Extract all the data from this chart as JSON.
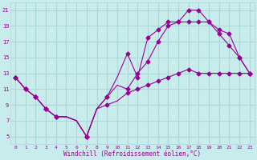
{
  "xlabel": "Windchill (Refroidissement éolien,°C)",
  "background_color": "#c8ecec",
  "grid_color": "#a8d8d8",
  "line_color": "#990099",
  "xlim": [
    -0.5,
    23.5
  ],
  "ylim": [
    4,
    22
  ],
  "xticks": [
    0,
    1,
    2,
    3,
    4,
    5,
    6,
    7,
    8,
    9,
    10,
    11,
    12,
    13,
    14,
    15,
    16,
    17,
    18,
    19,
    20,
    21,
    22,
    23
  ],
  "yticks": [
    5,
    7,
    9,
    11,
    13,
    15,
    17,
    19,
    21
  ],
  "series1_x": [
    0,
    1,
    2,
    3,
    4,
    5,
    6,
    7,
    8,
    9,
    10,
    11,
    12,
    13,
    14,
    15,
    16,
    17,
    18,
    19,
    20,
    21,
    22,
    23
  ],
  "series1_y": [
    12.5,
    11.0,
    10.0,
    8.5,
    7.5,
    7.5,
    7.0,
    5.0,
    8.5,
    10.0,
    12.5,
    15.5,
    12.5,
    17.5,
    18.5,
    19.5,
    19.5,
    21.0,
    21.0,
    19.5,
    18.0,
    16.5,
    15.0,
    13.0
  ],
  "series2_x": [
    0,
    1,
    2,
    3,
    4,
    5,
    6,
    7,
    8,
    9,
    10,
    11,
    12,
    13,
    14,
    15,
    16,
    17,
    18,
    19,
    20,
    21,
    22,
    23
  ],
  "series2_y": [
    12.5,
    11.0,
    10.0,
    8.5,
    7.5,
    7.5,
    7.0,
    5.0,
    8.5,
    10.0,
    11.5,
    11.0,
    13.0,
    14.5,
    17.0,
    19.0,
    19.5,
    19.5,
    19.5,
    19.5,
    18.5,
    18.0,
    15.0,
    13.0
  ],
  "series3_x": [
    0,
    1,
    2,
    3,
    4,
    5,
    6,
    7,
    8,
    9,
    10,
    11,
    12,
    13,
    14,
    15,
    16,
    17,
    18,
    19,
    20,
    21,
    22,
    23
  ],
  "series3_y": [
    12.5,
    11.0,
    10.0,
    8.5,
    7.5,
    7.5,
    7.0,
    5.0,
    8.5,
    9.0,
    9.5,
    10.5,
    11.0,
    11.5,
    12.0,
    12.5,
    13.0,
    13.5,
    13.0,
    13.0,
    13.0,
    13.0,
    13.0,
    13.0
  ],
  "marker_x1": [
    0,
    1,
    2,
    3,
    4,
    7,
    9,
    11,
    12,
    13,
    14,
    15,
    16,
    17,
    18,
    19,
    20,
    21,
    22,
    23
  ],
  "marker_y1": [
    12.5,
    11.0,
    10.0,
    8.5,
    7.5,
    5.0,
    10.0,
    15.5,
    12.5,
    17.5,
    18.5,
    19.5,
    19.5,
    21.0,
    21.0,
    19.5,
    18.0,
    16.5,
    15.0,
    13.0
  ],
  "marker_x2": [
    0,
    1,
    2,
    3,
    4,
    7,
    9,
    11,
    12,
    13,
    14,
    15,
    16,
    17,
    18,
    19,
    20,
    21,
    22,
    23
  ],
  "marker_y2": [
    12.5,
    11.0,
    10.0,
    8.5,
    7.5,
    5.0,
    10.0,
    11.0,
    13.0,
    14.5,
    17.0,
    19.0,
    19.5,
    19.5,
    19.5,
    19.5,
    18.5,
    18.0,
    15.0,
    13.0
  ],
  "marker_x3": [
    0,
    1,
    2,
    3,
    4,
    7,
    9,
    11,
    12,
    13,
    14,
    15,
    16,
    17,
    18,
    19,
    20,
    21,
    22,
    23
  ],
  "marker_y3": [
    12.5,
    11.0,
    10.0,
    8.5,
    7.5,
    5.0,
    9.0,
    10.5,
    11.0,
    11.5,
    12.0,
    12.5,
    13.0,
    13.5,
    13.0,
    13.0,
    13.0,
    13.0,
    13.0,
    13.0
  ]
}
